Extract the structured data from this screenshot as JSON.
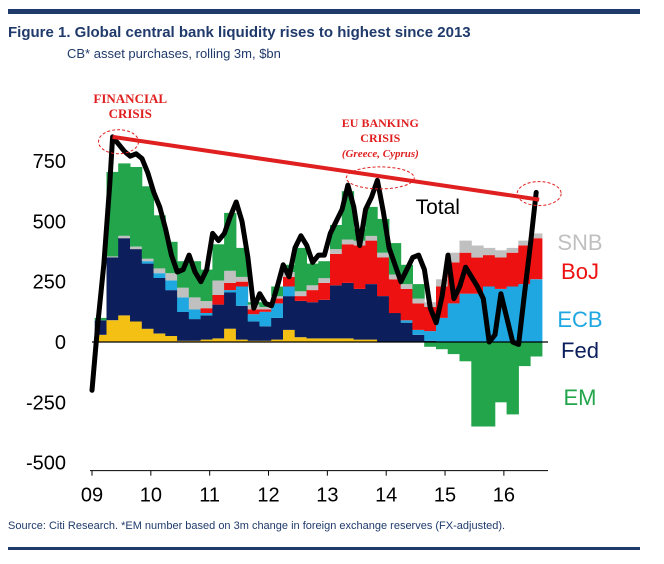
{
  "header": {
    "title": "Figure 1. Global central bank liquidity rises to highest since 2013",
    "subtitle": "CB* asset purchases, rolling 3m, $bn"
  },
  "footer": {
    "source": "Source: Citi Research. *EM number based on 3m change in foreign exchange reserves (FX-adjusted)."
  },
  "chart_data": {
    "type": "area",
    "title": "Global central bank liquidity rises to highest since 2013",
    "subtitle": "CB* asset purchases, rolling 3m, $bn",
    "stacking": "stacked bars with total line",
    "x_ticks": [
      "09",
      "10",
      "11",
      "12",
      "13",
      "14",
      "15",
      "16"
    ],
    "x_range": [
      2009.0,
      2016.75
    ],
    "y_ticks": [
      750,
      500,
      250,
      0,
      -250,
      -500
    ],
    "y_tick_labels": [
      "750",
      "500",
      "250",
      "0",
      "-250",
      "-500"
    ],
    "ylim": [
      -500,
      850
    ],
    "grid": false,
    "series_colors": {
      "SNB": "#c0c0c0",
      "BoJ": "#ee1111",
      "ECB": "#1ea7e1",
      "Fed": "#0c1f5c",
      "EM": "#22a54b",
      "Other": "#f5c014",
      "Total": "#000000",
      "Trend": "#e02020"
    },
    "legend": [
      {
        "name": "SNB",
        "color": "#c0c0c0"
      },
      {
        "name": "BoJ",
        "color": "#ee1111"
      },
      {
        "name": "ECB",
        "color": "#1ea7e1"
      },
      {
        "name": "Fed",
        "color": "#0c1f5c"
      },
      {
        "name": "EM",
        "color": "#22a54b"
      }
    ],
    "total_label": "Total",
    "total_line": [
      [
        2009.0,
        -200
      ],
      [
        2009.1,
        80
      ],
      [
        2009.2,
        320
      ],
      [
        2009.3,
        650
      ],
      [
        2009.35,
        850
      ],
      [
        2009.45,
        820
      ],
      [
        2009.55,
        790
      ],
      [
        2009.65,
        770
      ],
      [
        2009.75,
        780
      ],
      [
        2009.85,
        760
      ],
      [
        2009.95,
        700
      ],
      [
        2010.05,
        620
      ],
      [
        2010.15,
        560
      ],
      [
        2010.25,
        470
      ],
      [
        2010.35,
        360
      ],
      [
        2010.45,
        290
      ],
      [
        2010.55,
        300
      ],
      [
        2010.65,
        360
      ],
      [
        2010.75,
        290
      ],
      [
        2010.85,
        250
      ],
      [
        2010.95,
        300
      ],
      [
        2011.05,
        450
      ],
      [
        2011.15,
        420
      ],
      [
        2011.25,
        450
      ],
      [
        2011.35,
        520
      ],
      [
        2011.45,
        580
      ],
      [
        2011.55,
        500
      ],
      [
        2011.65,
        350
      ],
      [
        2011.75,
        140
      ],
      [
        2011.85,
        200
      ],
      [
        2011.95,
        160
      ],
      [
        2012.05,
        150
      ],
      [
        2012.15,
        230
      ],
      [
        2012.25,
        320
      ],
      [
        2012.35,
        270
      ],
      [
        2012.45,
        390
      ],
      [
        2012.55,
        440
      ],
      [
        2012.65,
        400
      ],
      [
        2012.75,
        330
      ],
      [
        2012.85,
        360
      ],
      [
        2012.95,
        360
      ],
      [
        2013.05,
        450
      ],
      [
        2013.15,
        500
      ],
      [
        2013.25,
        550
      ],
      [
        2013.35,
        650
      ],
      [
        2013.45,
        560
      ],
      [
        2013.55,
        400
      ],
      [
        2013.65,
        550
      ],
      [
        2013.75,
        600
      ],
      [
        2013.85,
        670
      ],
      [
        2013.95,
        540
      ],
      [
        2014.05,
        390
      ],
      [
        2014.15,
        320
      ],
      [
        2014.25,
        250
      ],
      [
        2014.35,
        300
      ],
      [
        2014.45,
        350
      ],
      [
        2014.55,
        360
      ],
      [
        2014.65,
        300
      ],
      [
        2014.75,
        140
      ],
      [
        2014.85,
        80
      ],
      [
        2014.95,
        190
      ],
      [
        2015.05,
        360
      ],
      [
        2015.15,
        180
      ],
      [
        2015.25,
        230
      ],
      [
        2015.35,
        310
      ],
      [
        2015.45,
        270
      ],
      [
        2015.55,
        230
      ],
      [
        2015.65,
        180
      ],
      [
        2015.75,
        0
      ],
      [
        2015.85,
        30
      ],
      [
        2015.95,
        200
      ],
      [
        2016.05,
        100
      ],
      [
        2016.15,
        0
      ],
      [
        2016.25,
        -10
      ],
      [
        2016.35,
        200
      ],
      [
        2016.45,
        400
      ],
      [
        2016.55,
        620
      ]
    ],
    "trend_line": {
      "from": [
        2009.35,
        850
      ],
      "to": [
        2016.6,
        590
      ]
    },
    "annotations": [
      {
        "text": [
          "FINANCIAL",
          "CRISIS"
        ],
        "near": [
          2009.4,
          850
        ]
      },
      {
        "text": [
          "EU BANKING",
          "CRISIS",
          "(Greece, Cyprus)"
        ],
        "near": [
          2013.9,
          670
        ]
      }
    ],
    "stack_samples": {
      "x": [
        2009.15,
        2009.35,
        2009.55,
        2009.75,
        2009.95,
        2010.15,
        2010.35,
        2010.55,
        2010.75,
        2010.95,
        2011.15,
        2011.35,
        2011.55,
        2011.75,
        2011.95,
        2012.15,
        2012.35,
        2012.55,
        2012.75,
        2012.95,
        2013.15,
        2013.35,
        2013.55,
        2013.75,
        2013.95,
        2014.15,
        2014.35,
        2014.55,
        2014.75,
        2014.95,
        2015.15,
        2015.35,
        2015.55,
        2015.75,
        2015.95,
        2016.15,
        2016.35,
        2016.55
      ],
      "Other": [
        30,
        90,
        110,
        85,
        55,
        35,
        25,
        5,
        5,
        10,
        15,
        55,
        10,
        5,
        5,
        10,
        50,
        20,
        15,
        15,
        15,
        15,
        10,
        10,
        0,
        0,
        0,
        0,
        0,
        0,
        0,
        0,
        0,
        0,
        0,
        0,
        0,
        0
      ],
      "Fed": [
        60,
        260,
        320,
        300,
        270,
        230,
        190,
        120,
        90,
        100,
        140,
        150,
        140,
        80,
        60,
        90,
        140,
        150,
        150,
        160,
        220,
        230,
        210,
        230,
        190,
        120,
        80,
        30,
        5,
        0,
        0,
        0,
        0,
        0,
        0,
        0,
        0,
        0
      ],
      "ECB": [
        0,
        0,
        0,
        0,
        10,
        20,
        40,
        60,
        40,
        10,
        0,
        10,
        80,
        30,
        60,
        60,
        40,
        0,
        0,
        0,
        0,
        0,
        0,
        0,
        0,
        0,
        10,
        20,
        40,
        100,
        160,
        200,
        200,
        230,
        220,
        230,
        240,
        260
      ],
      "BoJ": [
        0,
        0,
        0,
        0,
        0,
        0,
        0,
        0,
        0,
        20,
        40,
        30,
        20,
        20,
        10,
        20,
        40,
        20,
        50,
        70,
        130,
        160,
        180,
        180,
        160,
        140,
        130,
        110,
        100,
        130,
        170,
        170,
        150,
        130,
        130,
        140,
        160,
        170
      ],
      "SNB": [
        0,
        5,
        10,
        10,
        10,
        20,
        30,
        40,
        50,
        30,
        60,
        50,
        20,
        20,
        10,
        10,
        20,
        20,
        20,
        20,
        20,
        20,
        20,
        20,
        20,
        20,
        20,
        20,
        20,
        30,
        40,
        50,
        50,
        30,
        30,
        20,
        20,
        20
      ],
      "EM": [
        10,
        350,
        300,
        330,
        300,
        220,
        130,
        110,
        150,
        130,
        150,
        240,
        120,
        10,
        20,
        40,
        30,
        180,
        90,
        70,
        100,
        200,
        50,
        120,
        140,
        130,
        80,
        60,
        -20,
        -30,
        -50,
        -80,
        -350,
        -350,
        -250,
        -300,
        -100,
        -60
      ]
    }
  }
}
